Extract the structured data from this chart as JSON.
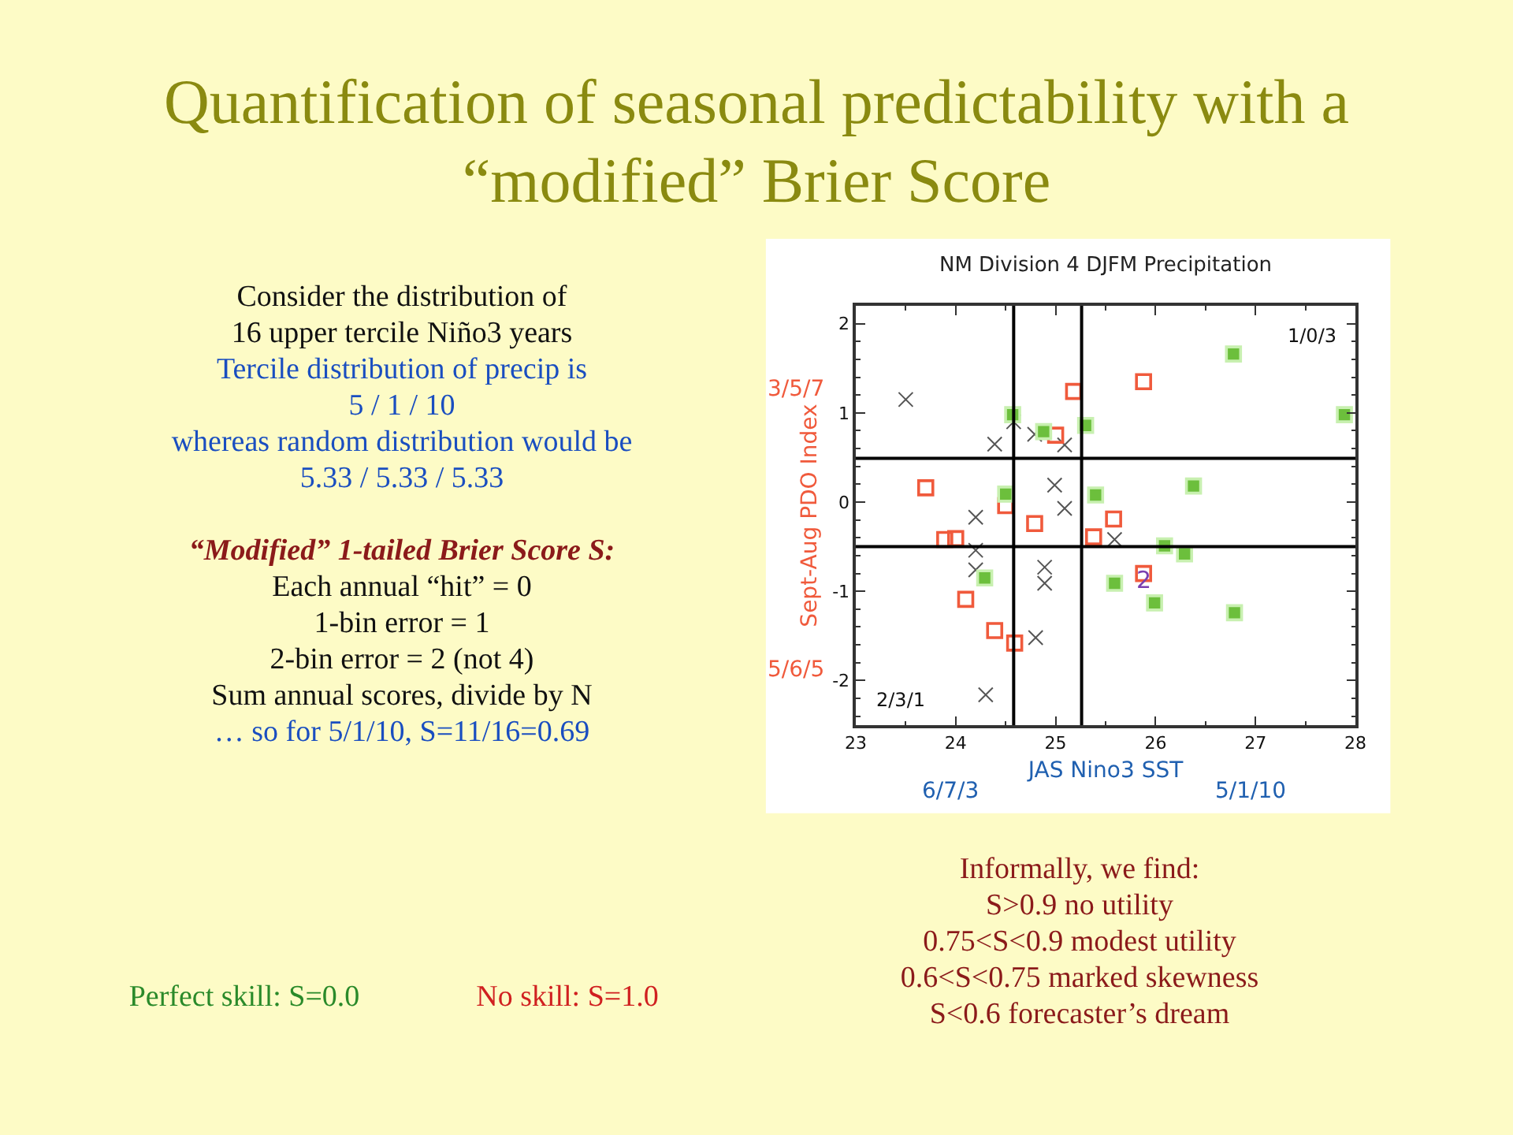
{
  "chart_data": {
    "type": "scatter",
    "title": "Quantification of seasonal predictability with a “modified” Brier Score",
    "subtitle": "NM Division 4 DJFM Precipitation",
    "xlabel": "JAS Nino3 SST",
    "ylabel": "Sept-Aug PDO Index",
    "xlim": [
      23,
      28
    ],
    "xticks": [
      23,
      24,
      25,
      26,
      27,
      28
    ],
    "ylim": [
      -2.5,
      2.2
    ],
    "yticks": [
      -2,
      -1,
      0,
      1,
      2
    ],
    "grid": false,
    "series": [
      {
        "color": "#555555",
        "marker": "cross",
        "x": [
          23.5,
          24.39,
          24.58,
          24.79,
          25.09,
          24.99,
          25.09,
          24.2,
          25.59,
          24.2,
          24.2,
          24.89,
          24.89,
          24.8,
          24.3
        ],
        "values": [
          1.15,
          0.65,
          0.9,
          0.76,
          0.64,
          0.19,
          -0.07,
          -0.17,
          -0.42,
          -0.54,
          -0.76,
          -0.73,
          -0.91,
          -1.52,
          -2.16
        ]
      },
      {
        "color": "#f05a3c",
        "marker": "square",
        "x": [
          25.18,
          25.88,
          25.0,
          23.7,
          24.5,
          24.79,
          25.58,
          23.89,
          24.0,
          25.38,
          25.88,
          24.1,
          24.39,
          24.59
        ],
        "values": [
          1.24,
          1.35,
          0.75,
          0.16,
          -0.04,
          -0.24,
          -0.19,
          -0.42,
          -0.41,
          -0.39,
          -0.8,
          -1.09,
          -1.44,
          -1.58
        ]
      },
      {
        "color": "#6cbf3c",
        "marker": "square",
        "x": [
          26.78,
          24.57,
          24.88,
          25.3,
          27.89,
          24.5,
          25.4,
          26.38,
          26.09,
          26.29,
          24.29,
          25.59,
          25.99,
          26.79
        ],
        "values": [
          1.66,
          0.98,
          0.79,
          0.86,
          0.98,
          0.09,
          0.08,
          0.18,
          -0.49,
          -0.58,
          -0.85,
          -0.91,
          -1.13,
          -1.24
        ]
      }
    ],
    "ref_lines": [
      {
        "axis": "x",
        "value": 24.58,
        "color": "#000000"
      },
      {
        "axis": "x",
        "value": 25.26,
        "color": "#000000"
      },
      {
        "axis": "y",
        "value": 0.49,
        "color": "#000000"
      },
      {
        "axis": "y",
        "value": -0.5,
        "color": "#000000"
      }
    ],
    "annotations": [
      "Consider the distribution of\n16 upper tercile Niño3 years\nTercile distribution of precip is\n5 / 1 / 10\nwhereas random distribution would be\n5.33 / 5.33 / 5.33\n\n“Modified” 1-tailed Brier Score S:\nEach annual “hit” = 0\n1-bin error = 1\n2-bin error = 2 (not 4)\nSum annual scores, divide by N\n… so for 5/1/10, S=11/16=0.69",
      "Perfect skill: S=0.0",
      "No skill: S=1.0",
      "Informally, we find:\nS>0.9  no utility\n0.75<S<0.9 modest utility\n0.6<S<0.75 marked skewness\nS<0.6 forecaster’s dream",
      "1/0/3",
      "2/3/1",
      "3/5/7",
      "5/6/5",
      "6/7/3",
      "5/1/10",
      {
        "text": "2",
        "x": 25.59,
        "y": -0.91
      }
    ]
  }
}
